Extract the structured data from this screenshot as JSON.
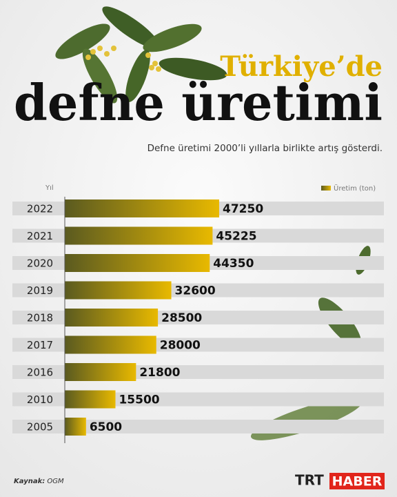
{
  "header": {
    "title_top": "Türkiye’de",
    "title_main": "defne üretimi",
    "subtitle": "Defne üretimi 2000’li yıllarla birlikte artış gösterdi."
  },
  "chart_data": {
    "type": "hbar",
    "y_label": "Yıl",
    "categories": [
      "2022",
      "2021",
      "2020",
      "2019",
      "2018",
      "2017",
      "2016",
      "2010",
      "2005"
    ],
    "series": [
      {
        "name": "Üretim (ton)",
        "colors": [
          "#5a5a20",
          "#e8b900"
        ],
        "values": [
          47250,
          45225,
          44350,
          32600,
          28500,
          28000,
          21800,
          15500,
          6500
        ]
      }
    ]
  },
  "footer": {
    "source_label": "Kaynak:",
    "source": "OGM",
    "logo_left": "TRT",
    "logo_right": "HABER"
  }
}
